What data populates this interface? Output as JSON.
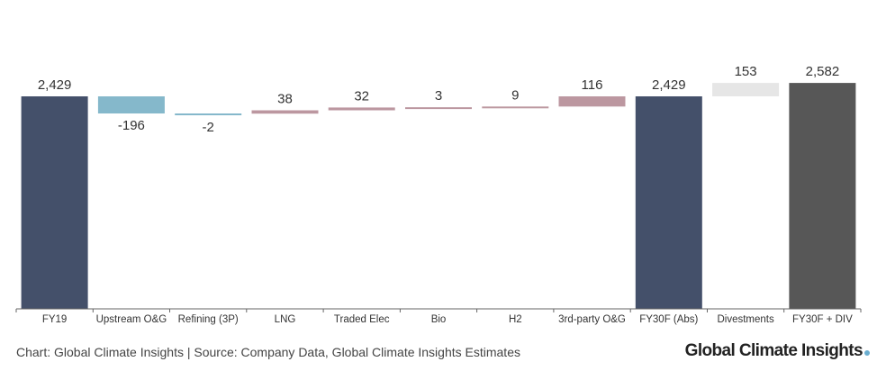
{
  "chart_data": {
    "type": "bar",
    "subtype": "waterfall",
    "categories": [
      "FY19",
      "Upstream O&G",
      "Refining (3P)",
      "LNG",
      "Traded Elec",
      "Bio",
      "H2",
      "3rd-party O&G",
      "FY30F (Abs)",
      "Divestments",
      "FY30F + DIV"
    ],
    "values": [
      2429,
      -196,
      -2,
      38,
      32,
      3,
      9,
      116,
      2429,
      153,
      2582
    ],
    "value_labels": [
      "2,429",
      "-196",
      "-2",
      "38",
      "32",
      "3",
      "9",
      "116",
      "2,429",
      "153",
      "2,582"
    ],
    "kinds": [
      "total",
      "delta",
      "delta",
      "delta",
      "delta",
      "delta",
      "delta",
      "delta",
      "total",
      "delta",
      "total"
    ],
    "colors": [
      "#44506a",
      "#85b8cb",
      "#85b8cb",
      "#bc97a0",
      "#bc97a0",
      "#bc97a0",
      "#bc97a0",
      "#bc97a0",
      "#44506a",
      "#e6e6e6",
      "#575757"
    ],
    "title": "",
    "xlabel": "",
    "ylabel": "",
    "grid": false,
    "legend": "none"
  },
  "footer": {
    "source": "Chart: Global Climate Insights | Source: Company Data, Global Climate Insights Estimates",
    "brand": "Global Climate Insights",
    "brand_dot_color": "#6aaed0"
  }
}
